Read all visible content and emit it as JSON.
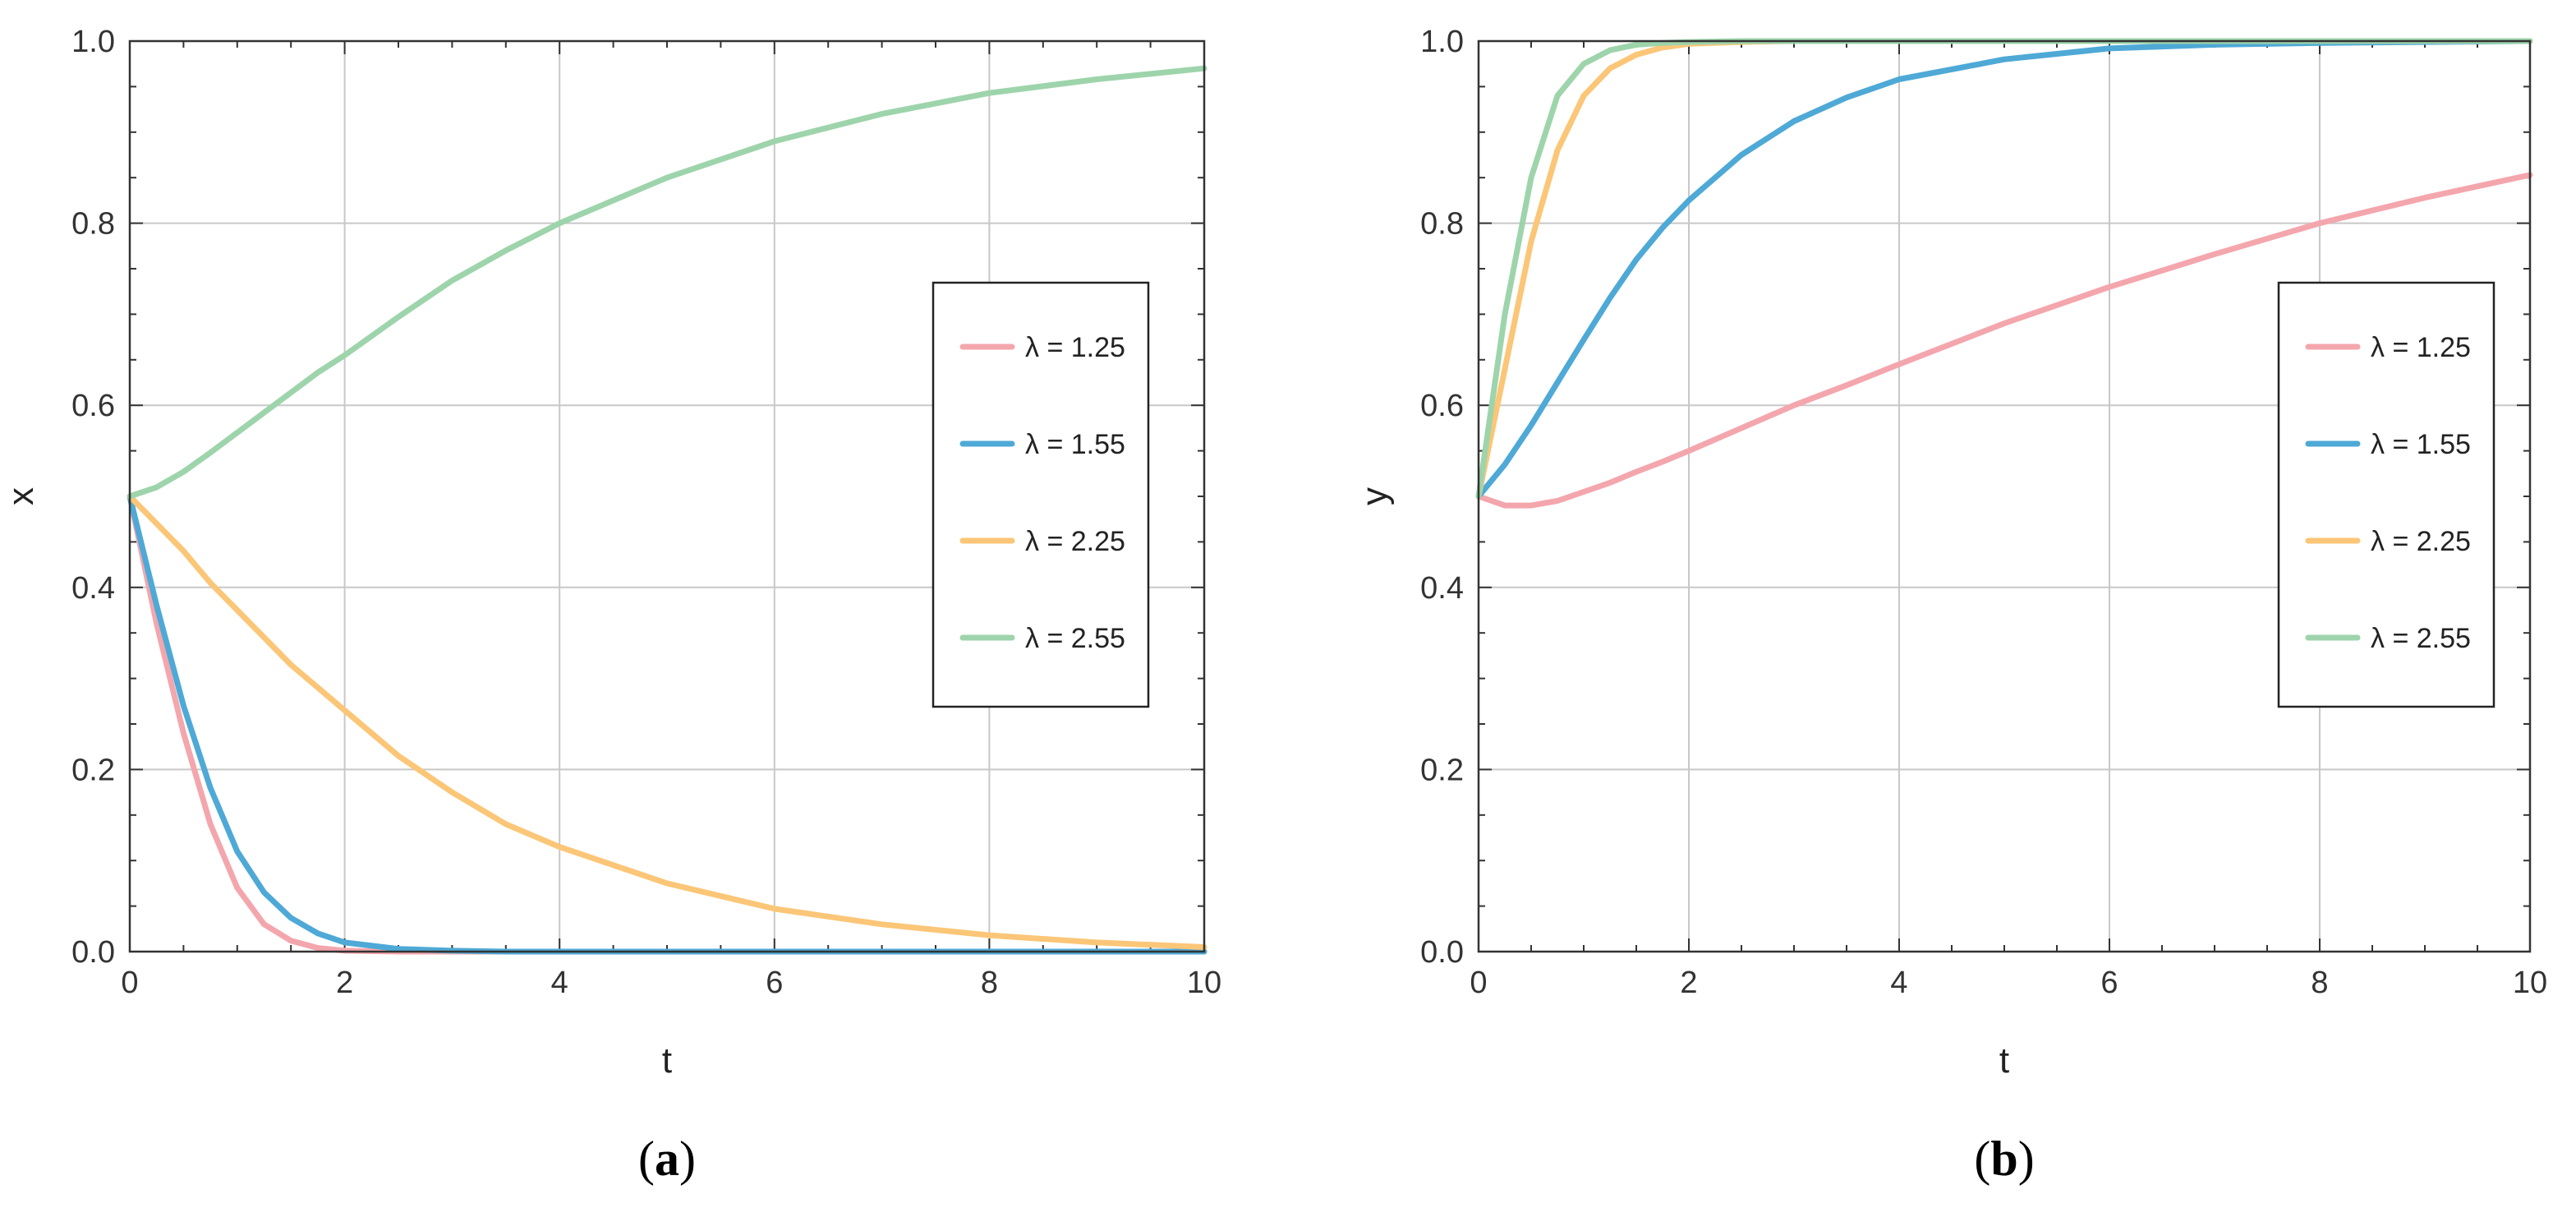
{
  "chart_data": [
    {
      "type": "line",
      "panel_label": "a",
      "xlabel": "t",
      "ylabel": "x",
      "xlim": [
        0,
        10
      ],
      "ylim": [
        0,
        1
      ],
      "xticks": [
        "0",
        "2",
        "4",
        "6",
        "8",
        "10"
      ],
      "yticks": [
        "0.0",
        "0.2",
        "0.4",
        "0.6",
        "0.8",
        "1.0"
      ],
      "grid": true,
      "legend_position": "right-middle",
      "x": [
        0,
        0.25,
        0.5,
        0.75,
        1,
        1.25,
        1.5,
        1.75,
        2,
        2.5,
        3,
        3.5,
        4,
        5,
        6,
        7,
        8,
        9,
        10
      ],
      "series": [
        {
          "name": "λ = 1.25",
          "color": "#f4a6ad",
          "values": [
            0.5,
            0.36,
            0.24,
            0.14,
            0.07,
            0.03,
            0.012,
            0.004,
            0.001,
            0,
            0,
            0,
            0,
            0,
            0,
            0,
            0,
            0,
            0
          ]
        },
        {
          "name": "λ = 1.55",
          "color": "#4ea9d6",
          "values": [
            0.5,
            0.38,
            0.27,
            0.18,
            0.11,
            0.065,
            0.037,
            0.02,
            0.01,
            0.003,
            0.001,
            0,
            0,
            0,
            0,
            0,
            0,
            0,
            0
          ]
        },
        {
          "name": "λ = 2.25",
          "color": "#fbc677",
          "values": [
            0.5,
            0.47,
            0.44,
            0.405,
            0.375,
            0.345,
            0.315,
            0.29,
            0.265,
            0.215,
            0.175,
            0.14,
            0.115,
            0.075,
            0.047,
            0.03,
            0.018,
            0.01,
            0.005
          ]
        },
        {
          "name": "λ = 2.55",
          "color": "#9ed4ab",
          "values": [
            0.5,
            0.51,
            0.527,
            0.548,
            0.57,
            0.592,
            0.614,
            0.636,
            0.655,
            0.697,
            0.737,
            0.77,
            0.8,
            0.85,
            0.89,
            0.92,
            0.943,
            0.958,
            0.97
          ]
        }
      ]
    },
    {
      "type": "line",
      "panel_label": "b",
      "xlabel": "t",
      "ylabel": "y",
      "xlim": [
        0,
        10
      ],
      "ylim": [
        0,
        1
      ],
      "xticks": [
        "0",
        "2",
        "4",
        "6",
        "8",
        "10"
      ],
      "yticks": [
        "0.0",
        "0.2",
        "0.4",
        "0.6",
        "0.8",
        "1.0"
      ],
      "grid": true,
      "legend_position": "right-middle",
      "x": [
        0,
        0.25,
        0.5,
        0.75,
        1,
        1.25,
        1.5,
        1.75,
        2,
        2.5,
        3,
        3.5,
        4,
        5,
        6,
        7,
        8,
        9,
        10
      ],
      "series": [
        {
          "name": "λ = 1.25",
          "color": "#f4a6ad",
          "values": [
            0.5,
            0.49,
            0.49,
            0.495,
            0.505,
            0.515,
            0.527,
            0.538,
            0.55,
            0.575,
            0.6,
            0.622,
            0.645,
            0.69,
            0.73,
            0.766,
            0.8,
            0.828,
            0.853
          ]
        },
        {
          "name": "λ = 1.55",
          "color": "#4ea9d6",
          "values": [
            0.5,
            0.535,
            0.578,
            0.625,
            0.672,
            0.718,
            0.76,
            0.795,
            0.825,
            0.875,
            0.912,
            0.938,
            0.958,
            0.98,
            0.992,
            0.996,
            0.998,
            0.999,
            1.0
          ]
        },
        {
          "name": "λ = 2.25",
          "color": "#fbc677",
          "values": [
            0.5,
            0.64,
            0.78,
            0.88,
            0.94,
            0.97,
            0.985,
            0.993,
            0.997,
            0.999,
            1.0,
            1.0,
            1.0,
            1.0,
            1.0,
            1.0,
            1.0,
            1.0,
            1.0
          ]
        },
        {
          "name": "λ = 2.55",
          "color": "#9ed4ab",
          "values": [
            0.5,
            0.7,
            0.85,
            0.94,
            0.975,
            0.99,
            0.996,
            0.998,
            0.999,
            1.0,
            1.0,
            1.0,
            1.0,
            1.0,
            1.0,
            1.0,
            1.0,
            1.0,
            1.0
          ]
        }
      ]
    }
  ]
}
